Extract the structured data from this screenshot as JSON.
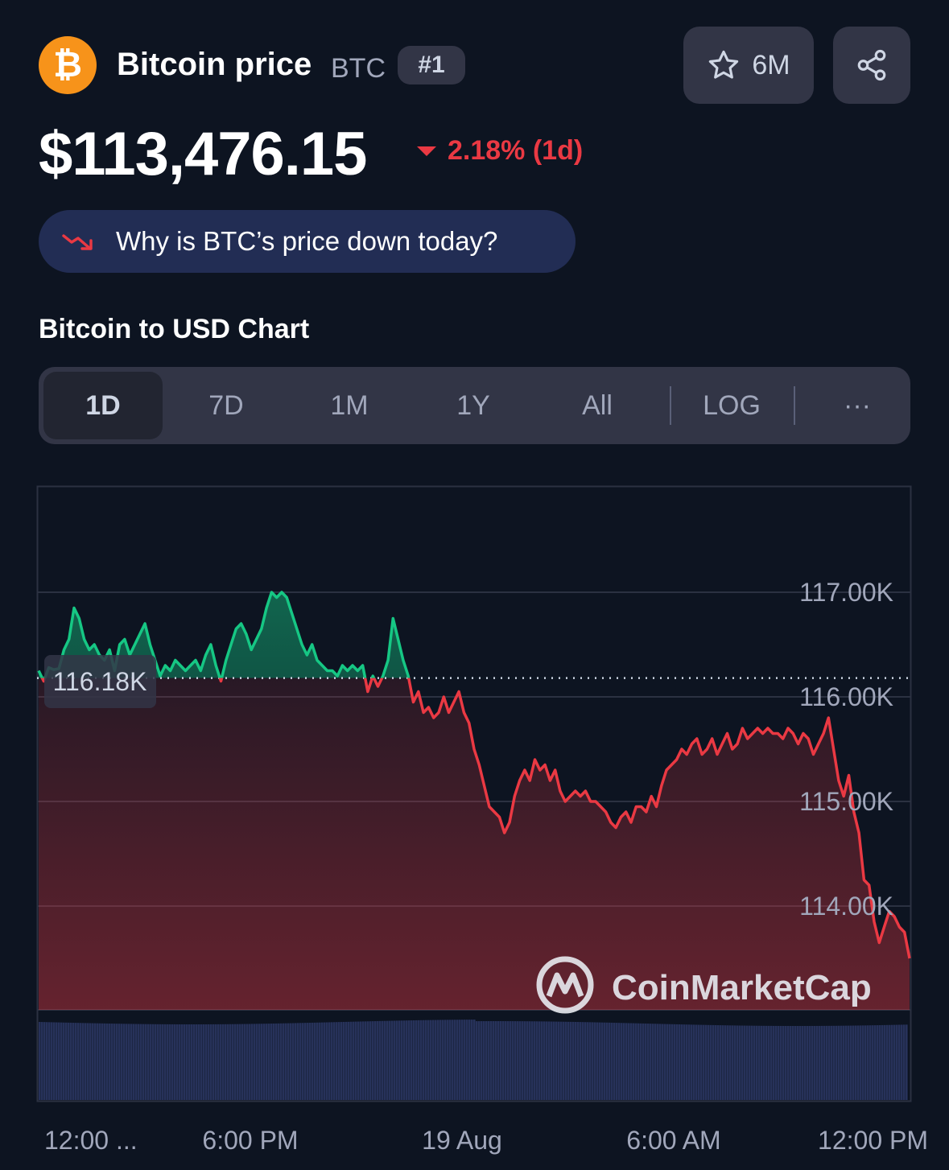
{
  "header": {
    "coin_name": "Bitcoin price",
    "symbol": "BTC",
    "rank": "#1",
    "watchlist_count": "6M",
    "logo_icon": "bitcoin-logo-icon"
  },
  "price": {
    "value": "$113,476.15",
    "change": "2.18% (1d)",
    "direction": "down",
    "color": "#ea3943"
  },
  "why_button": {
    "label": "Why is BTC’s price down today?"
  },
  "chart_section": {
    "title": "Bitcoin to USD Chart"
  },
  "tabs": [
    {
      "label": "1D",
      "active": true
    },
    {
      "label": "7D",
      "active": false
    },
    {
      "label": "1M",
      "active": false
    },
    {
      "label": "1Y",
      "active": false
    },
    {
      "label": "All",
      "active": false
    },
    {
      "label": "LOG",
      "active": false
    },
    {
      "label": "···",
      "active": false
    }
  ],
  "chart_data": {
    "type": "line",
    "x_ticks": [
      "12:00 ...",
      "6:00 PM",
      "19 Aug",
      "6:00 AM",
      "12:00 PM"
    ],
    "y_ticks": [
      "117.00K",
      "116.00K",
      "115.00K",
      "114.00K"
    ],
    "y_tick_values": [
      117000,
      116000,
      115000,
      114000
    ],
    "ylim": [
      113000,
      118000
    ],
    "reference_label": "116.18K",
    "reference_value": 116180,
    "up_color": "#16c784",
    "down_color": "#ea3943",
    "values": [
      116250,
      116150,
      116280,
      116260,
      116270,
      116450,
      116550,
      116850,
      116750,
      116550,
      116450,
      116500,
      116400,
      116350,
      116450,
      116250,
      116500,
      116550,
      116400,
      116500,
      116600,
      116700,
      116500,
      116350,
      116200,
      116300,
      116250,
      116350,
      116300,
      116250,
      116300,
      116350,
      116250,
      116400,
      116500,
      116300,
      116150,
      116350,
      116500,
      116650,
      116700,
      116600,
      116450,
      116550,
      116650,
      116850,
      117000,
      116950,
      117000,
      116950,
      116800,
      116650,
      116500,
      116400,
      116500,
      116350,
      116300,
      116250,
      116250,
      116200,
      116300,
      116250,
      116300,
      116250,
      116300,
      116050,
      116200,
      116100,
      116200,
      116350,
      116750,
      116550,
      116350,
      116200,
      115950,
      116050,
      115850,
      115900,
      115800,
      115850,
      116000,
      115850,
      115950,
      116050,
      115850,
      115750,
      115500,
      115350,
      115150,
      114950,
      114900,
      114850,
      114700,
      114800,
      115050,
      115200,
      115300,
      115200,
      115400,
      115300,
      115350,
      115200,
      115300,
      115100,
      115000,
      115050,
      115100,
      115050,
      115100,
      115000,
      115000,
      114950,
      114900,
      114800,
      114750,
      114850,
      114900,
      114800,
      114950,
      114950,
      114900,
      115050,
      114950,
      115150,
      115300,
      115350,
      115400,
      115500,
      115450,
      115550,
      115600,
      115450,
      115500,
      115600,
      115450,
      115550,
      115650,
      115500,
      115550,
      115700,
      115600,
      115650,
      115700,
      115650,
      115700,
      115650,
      115650,
      115600,
      115700,
      115650,
      115550,
      115650,
      115600,
      115450,
      115550,
      115650,
      115800,
      115500,
      115200,
      115050,
      115250,
      114900,
      114700,
      114250,
      114200,
      113850,
      113650,
      113800,
      113950,
      113900,
      113800,
      113750,
      113500
    ]
  },
  "volume": {
    "color": "#27325a"
  },
  "watermark": {
    "text": "CoinMarketCap"
  }
}
